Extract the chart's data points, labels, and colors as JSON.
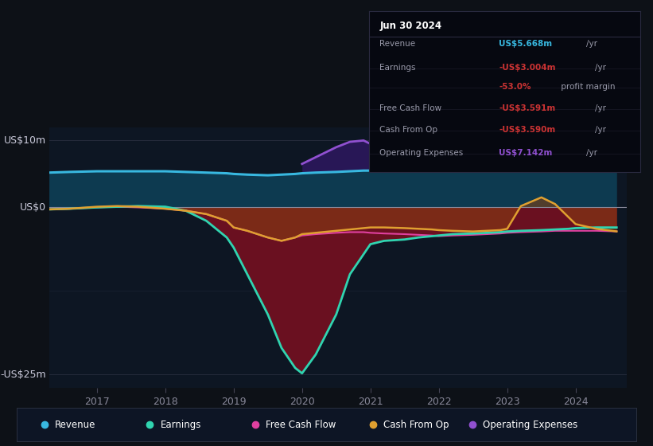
{
  "bg_color": "#0d1117",
  "plot_bg": "#0d1623",
  "title": "Jun 30 2024",
  "y_label_top": "US$10m",
  "y_label_zero": "US$0",
  "y_label_bottom": "-US$25m",
  "ylim": [
    -27,
    12
  ],
  "xlim_start": 2016.3,
  "xlim_end": 2024.75,
  "x_ticks": [
    2017,
    2018,
    2019,
    2020,
    2021,
    2022,
    2023,
    2024
  ],
  "colors": {
    "revenue": "#38b8e0",
    "earnings": "#30d4b0",
    "free_cash_flow": "#e040a0",
    "cash_from_op": "#e0a030",
    "op_expenses": "#9050d0"
  },
  "legend": [
    {
      "label": "Revenue",
      "color": "#38b8e0"
    },
    {
      "label": "Earnings",
      "color": "#30d4b0"
    },
    {
      "label": "Free Cash Flow",
      "color": "#e040a0"
    },
    {
      "label": "Cash From Op",
      "color": "#e0a030"
    },
    {
      "label": "Operating Expenses",
      "color": "#9050d0"
    }
  ],
  "info_box": {
    "title": "Jun 30 2024",
    "rows": [
      {
        "label": "Revenue",
        "value": "US$5.668m",
        "unit": "/yr",
        "vcolor": "#38b8e0"
      },
      {
        "label": "Earnings",
        "value": "-US$3.004m",
        "unit": "/yr",
        "vcolor": "#cc3333"
      },
      {
        "label": "",
        "value": "-53.0%",
        "unit": " profit margin",
        "vcolor": "#cc3333"
      },
      {
        "label": "Free Cash Flow",
        "value": "-US$3.591m",
        "unit": "/yr",
        "vcolor": "#cc3333"
      },
      {
        "label": "Cash From Op",
        "value": "-US$3.590m",
        "unit": "/yr",
        "vcolor": "#cc3333"
      },
      {
        "label": "Operating Expenses",
        "value": "US$7.142m",
        "unit": "/yr",
        "vcolor": "#9050d0"
      }
    ]
  },
  "series": {
    "years": [
      2016.3,
      2016.6,
      2017.0,
      2017.3,
      2017.6,
      2018.0,
      2018.3,
      2018.6,
      2018.9,
      2019.0,
      2019.2,
      2019.5,
      2019.7,
      2019.9,
      2020.0,
      2020.2,
      2020.5,
      2020.7,
      2020.9,
      2021.0,
      2021.2,
      2021.5,
      2021.7,
      2021.9,
      2022.0,
      2022.2,
      2022.5,
      2022.7,
      2022.9,
      2023.0,
      2023.2,
      2023.5,
      2023.7,
      2023.9,
      2024.0,
      2024.3,
      2024.6
    ],
    "revenue": [
      5.2,
      5.3,
      5.4,
      5.4,
      5.4,
      5.4,
      5.3,
      5.2,
      5.1,
      5.0,
      4.9,
      4.8,
      4.9,
      5.0,
      5.1,
      5.2,
      5.3,
      5.4,
      5.5,
      5.5,
      5.5,
      5.5,
      5.5,
      5.5,
      5.5,
      5.5,
      5.6,
      5.6,
      5.7,
      5.8,
      5.9,
      5.9,
      6.0,
      6.0,
      5.9,
      5.8,
      5.668
    ],
    "earnings": [
      -0.3,
      -0.2,
      0.0,
      0.1,
      0.2,
      0.1,
      -0.5,
      -2.0,
      -4.5,
      -6.0,
      -10.0,
      -16.0,
      -21.0,
      -24.0,
      -24.8,
      -22.0,
      -16.0,
      -10.0,
      -7.0,
      -5.5,
      -5.0,
      -4.8,
      -4.5,
      -4.3,
      -4.2,
      -4.0,
      -3.9,
      -3.8,
      -3.7,
      -3.6,
      -3.5,
      -3.4,
      -3.3,
      -3.2,
      -3.1,
      -3.0,
      -3.004
    ],
    "cash_from_op": [
      -0.3,
      -0.2,
      0.1,
      0.2,
      0.1,
      -0.2,
      -0.5,
      -1.0,
      -2.0,
      -3.0,
      -3.5,
      -4.5,
      -5.0,
      -4.5,
      -4.0,
      -3.8,
      -3.5,
      -3.3,
      -3.1,
      -3.0,
      -3.0,
      -3.1,
      -3.2,
      -3.3,
      -3.4,
      -3.5,
      -3.6,
      -3.5,
      -3.4,
      -3.2,
      0.2,
      1.5,
      0.5,
      -1.5,
      -2.5,
      -3.2,
      -3.59
    ],
    "free_cash_flow": [
      -0.3,
      -0.2,
      0.0,
      0.1,
      0.0,
      -0.2,
      -0.5,
      -1.0,
      -2.0,
      -3.0,
      -3.5,
      -4.5,
      -5.0,
      -4.5,
      -4.2,
      -4.0,
      -3.8,
      -3.7,
      -3.7,
      -3.8,
      -3.9,
      -4.0,
      -4.1,
      -4.2,
      -4.3,
      -4.2,
      -4.1,
      -4.0,
      -3.9,
      -3.8,
      -3.7,
      -3.6,
      -3.5,
      -3.5,
      -3.5,
      -3.5,
      -3.591
    ],
    "op_expenses": [
      null,
      null,
      null,
      null,
      null,
      null,
      null,
      null,
      null,
      null,
      null,
      null,
      null,
      null,
      6.5,
      7.5,
      9.0,
      9.8,
      10.0,
      9.5,
      9.2,
      8.8,
      8.6,
      8.5,
      8.5,
      8.6,
      8.5,
      8.4,
      8.3,
      8.2,
      8.8,
      9.5,
      9.0,
      8.0,
      7.5,
      7.3,
      7.142
    ]
  }
}
